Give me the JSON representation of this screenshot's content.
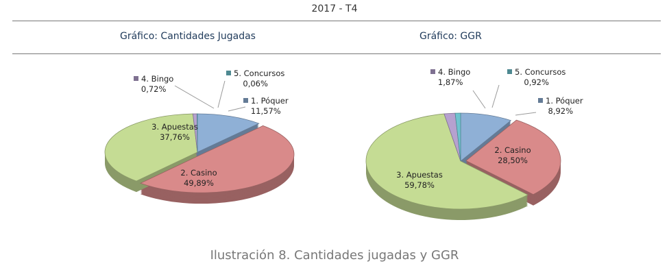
{
  "header": {
    "title": "2017 - T4"
  },
  "caption": "Ilustración 8. Cantidades jugadas y GGR",
  "colors": {
    "poquer": "#8fb0d6",
    "casino": "#d98a8a",
    "apuestas": "#c5dc94",
    "bingo": "#b6a1cf",
    "concursos": "#6fc3cf"
  },
  "chart_data": [
    {
      "type": "pie",
      "title": "Gráfico: Cantidades Jugadas",
      "categories": [
        "1. Póquer",
        "2. Casino",
        "3. Apuestas",
        "4. Bingo",
        "5. Concursos"
      ],
      "values": [
        11.57,
        49.89,
        37.76,
        0.72,
        0.06
      ],
      "labels": [
        "11,57%",
        "49,89%",
        "37,76%",
        "0,72%",
        "0,06%"
      ]
    },
    {
      "type": "pie",
      "title": "Gráfico: GGR",
      "categories": [
        "1. Póquer",
        "2. Casino",
        "3. Apuestas",
        "4. Bingo",
        "5. Concursos"
      ],
      "values": [
        8.92,
        28.5,
        59.78,
        1.87,
        0.92
      ],
      "labels": [
        "8,92%",
        "28,50%",
        "59,78%",
        "1,87%",
        "0,92%"
      ]
    }
  ]
}
